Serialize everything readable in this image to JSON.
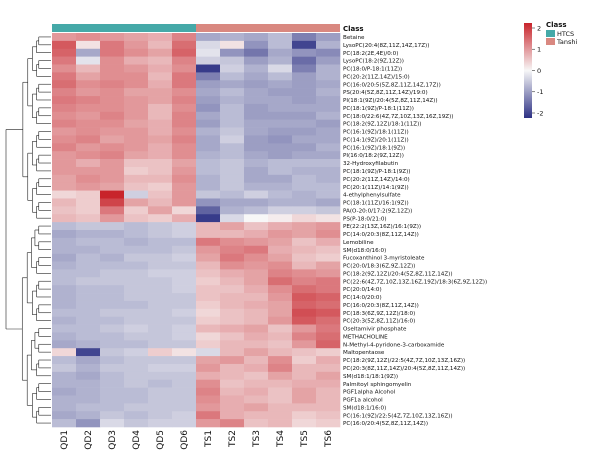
{
  "chart_data": {
    "type": "heatmap",
    "title": "",
    "color_scale": {
      "min": -2,
      "max": 2,
      "ticks": [
        "2",
        "1",
        "0",
        "-1",
        "-2"
      ],
      "low_color": "#2d3184",
      "mid_color": "#f7f7f7",
      "high_color": "#c8242b"
    },
    "class_bar": {
      "label": "Class",
      "groups": [
        {
          "name": "HTCS",
          "color": "#45a9a8",
          "columns": 6
        },
        {
          "name": "Tanshi",
          "color": "#d98880",
          "columns": 6
        }
      ]
    },
    "legend": {
      "title": "Class",
      "entries": [
        "HTCS",
        "Tanshi"
      ]
    },
    "columns": [
      "QD1",
      "QD2",
      "QD3",
      "QD4",
      "QD5",
      "QD6",
      "TS1",
      "TS2",
      "TS3",
      "TS4",
      "TS5",
      "TS6"
    ],
    "rows": [
      "Betaine",
      "LysoPC(20:4(8Z,11Z,14Z,17Z))",
      "PC(18:2(2E,4E)/0:0)",
      "LysoPC(18:2(9Z,12Z))",
      "PC(18:0/P-18:1(11Z))",
      "PC(20:2(11Z,14Z)/15:0)",
      "PC(16:0/20:5(5Z,8Z,11Z,14Z,17Z))",
      "PS(20:4(5Z,8Z,11Z,14Z)/19:0)",
      "PI(18:1(9Z)/20:4(5Z,8Z,11Z,14Z))",
      "PC(18:1(9Z)/P-18:1(11Z))",
      "PC(18:0/22:6(4Z,7Z,10Z,13Z,16Z,19Z))",
      "PC(18:2(9Z,12Z)/18:1(11Z))",
      "PC(16:1(9Z)/18:1(11Z))",
      "PC(14:1(9Z)/20:1(11Z))",
      "PC(16:1(9Z)/18:1(9Z))",
      "PI(16:0/18:2(9Z,12Z))",
      "32-Hydroxyfilabutin",
      "PC(18:1(9Z)/P-18:1(9Z))",
      "PC(20:2(11Z,14Z)/14:0)",
      "PC(20:1(11Z)/14:1(9Z))",
      "4-ethylphenylsulfate",
      "PC(18:1(11Z)/16:1(9Z))",
      "PA(O-20:0/17:2(9Z,12Z))",
      "PS(P-18:0/21:0)",
      "PE(22:2(13Z,16Z)/16:1(9Z))",
      "PC(14:0/20:3(8Z,11Z,14Z))",
      "Lemobiline",
      "SM(d18:0/16:0)",
      "Fucoxanthinol 3-myristoleate",
      "PC(20:0/18:3(6Z,9Z,12Z))",
      "PC(18:2(9Z,12Z)/20:4(5Z,8Z,11Z,14Z))",
      "PC(22:6(4Z,7Z,10Z,13Z,16Z,19Z)/18:3(6Z,9Z,12Z))",
      "PC(20:0/14:0)",
      "PC(14:0/20:0)",
      "PC(16:0/20:3(8Z,11Z,14Z))",
      "PC(18:3(6Z,9Z,12Z)/18:0)",
      "PC(20:3(5Z,8Z,11Z)/16:0)",
      "Oseltamivir phosphate",
      "METHACHOLINE",
      "N-Methyl-4-pyridone-3-carboxamide",
      "Maltopentaose",
      "PC(18:2(9Z,12Z)/22:5(4Z,7Z,10Z,13Z,16Z))",
      "PC(20:3(8Z,11Z,14Z)/20:4(5Z,8Z,11Z,14Z))",
      "SM(d18:1/18:1(9Z))",
      "Palmitoyl sphingomyelin",
      "PGF1alpha Alcohol",
      "PGF1a alcohol",
      "SM(d18:1/16:0)",
      "PC(16:1(9Z)/22:5(4Z,7Z,10Z,13Z,16Z))",
      "PC(16:0/20:4(5Z,8Z,11Z,14Z))"
    ],
    "values": [
      [
        0.9,
        1.0,
        0.9,
        0.8,
        0.7,
        1.1,
        -0.8,
        -0.7,
        -0.8,
        -0.6,
        -1.2,
        -0.9
      ],
      [
        1.5,
        0.2,
        1.2,
        0.9,
        0.6,
        1.3,
        -0.3,
        0.2,
        -1.0,
        -0.6,
        -1.8,
        -0.7
      ],
      [
        1.4,
        -0.8,
        1.2,
        1.0,
        0.8,
        1.4,
        -0.2,
        -1.0,
        -1.3,
        -0.8,
        -1.0,
        -1.1
      ],
      [
        1.2,
        -0.2,
        1.0,
        0.7,
        0.6,
        1.1,
        -0.4,
        -0.5,
        -0.9,
        -0.7,
        -1.4,
        -0.9
      ],
      [
        1.0,
        0.6,
        1.0,
        0.9,
        0.7,
        1.0,
        -1.9,
        -0.4,
        -0.7,
        -0.3,
        -1.2,
        -0.7
      ],
      [
        1.2,
        0.8,
        1.0,
        1.0,
        0.6,
        1.2,
        -1.2,
        -0.6,
        -0.8,
        -0.6,
        -0.9,
        -0.7
      ],
      [
        1.3,
        1.0,
        1.1,
        1.0,
        0.7,
        1.2,
        -0.9,
        -0.8,
        -0.9,
        -0.8,
        -0.9,
        -0.8
      ],
      [
        1.1,
        0.9,
        1.0,
        0.8,
        0.8,
        1.0,
        -0.8,
        -0.6,
        -0.8,
        -0.9,
        -0.9,
        -0.7
      ],
      [
        1.2,
        1.1,
        1.0,
        0.9,
        0.8,
        1.1,
        -0.9,
        -0.7,
        -0.8,
        -0.8,
        -0.9,
        -0.8
      ],
      [
        1.1,
        1.0,
        1.0,
        0.9,
        0.6,
        1.0,
        -1.0,
        -0.6,
        -0.9,
        -0.8,
        -0.8,
        -0.8
      ],
      [
        1.0,
        0.9,
        1.1,
        0.9,
        0.6,
        1.1,
        -0.8,
        -0.6,
        -0.9,
        -0.9,
        -0.9,
        -0.7
      ],
      [
        1.1,
        1.0,
        1.0,
        0.8,
        0.7,
        1.1,
        -0.9,
        -0.6,
        -0.8,
        -0.8,
        -0.8,
        -0.9
      ],
      [
        0.9,
        1.0,
        0.9,
        0.9,
        0.7,
        1.0,
        -0.7,
        -0.5,
        -0.8,
        -0.9,
        -0.9,
        -0.8
      ],
      [
        1.0,
        1.1,
        0.8,
        0.9,
        0.8,
        1.1,
        -0.8,
        -0.4,
        -0.9,
        -1.0,
        -0.8,
        -0.8
      ],
      [
        1.1,
        0.9,
        1.0,
        0.9,
        0.7,
        1.0,
        -0.8,
        -0.6,
        -0.9,
        -0.9,
        -0.9,
        -0.7
      ],
      [
        0.9,
        1.0,
        1.1,
        0.8,
        0.7,
        1.0,
        -0.7,
        -0.6,
        -0.8,
        -0.9,
        -0.8,
        -0.8
      ],
      [
        0.9,
        0.7,
        0.9,
        0.5,
        0.5,
        0.8,
        -0.6,
        -0.5,
        -0.7,
        -0.6,
        -0.6,
        -0.6
      ],
      [
        0.9,
        0.9,
        0.9,
        0.4,
        0.5,
        0.9,
        -0.6,
        -0.5,
        -0.8,
        -0.6,
        -0.7,
        -0.7
      ],
      [
        0.8,
        1.0,
        0.9,
        0.6,
        0.6,
        1.0,
        -0.7,
        -0.5,
        -0.8,
        -0.8,
        -0.6,
        -0.7
      ],
      [
        0.8,
        0.9,
        0.8,
        0.5,
        0.4,
        0.9,
        -0.7,
        -0.5,
        -0.7,
        -0.7,
        -0.6,
        -0.6
      ],
      [
        0.3,
        0.4,
        2.0,
        -0.4,
        0.5,
        0.9,
        -0.5,
        -0.6,
        -0.4,
        -0.6,
        -0.7,
        -0.6
      ],
      [
        0.6,
        0.4,
        1.7,
        0.8,
        0.6,
        0.9,
        -1.0,
        -0.8,
        -0.8,
        -0.7,
        -0.7,
        -0.8
      ],
      [
        0.5,
        0.4,
        1.2,
        0.4,
        0.8,
        0.3,
        -1.5,
        -0.7,
        -0.6,
        -0.4,
        -0.4,
        -0.5
      ],
      [
        0.6,
        0.5,
        0.9,
        0.5,
        0.4,
        0.7,
        -1.9,
        -0.3,
        0.0,
        0.1,
        0.3,
        0.2
      ],
      [
        -0.6,
        -0.5,
        -0.5,
        -0.6,
        -0.5,
        -0.4,
        0.6,
        0.8,
        0.5,
        0.7,
        0.8,
        0.9
      ],
      [
        -0.8,
        -0.7,
        -0.7,
        -0.6,
        -0.5,
        -0.4,
        0.6,
        0.6,
        0.7,
        0.9,
        0.8,
        1.0
      ],
      [
        -0.7,
        -0.6,
        -0.6,
        -0.7,
        -0.6,
        -0.6,
        1.2,
        1.0,
        0.9,
        0.8,
        0.5,
        0.7
      ],
      [
        -0.7,
        -0.7,
        -0.6,
        -0.6,
        -0.6,
        -0.5,
        0.9,
        1.1,
        1.2,
        0.7,
        0.6,
        0.5
      ],
      [
        -0.8,
        -0.6,
        -0.7,
        -0.5,
        -0.5,
        -0.4,
        0.8,
        1.2,
        1.0,
        0.8,
        0.5,
        0.4
      ],
      [
        -0.7,
        -0.6,
        -0.6,
        -0.6,
        -0.5,
        -0.5,
        0.6,
        1.0,
        0.9,
        1.0,
        0.6,
        0.8
      ],
      [
        -0.6,
        -0.6,
        -0.5,
        -0.5,
        -0.4,
        -0.4,
        0.5,
        0.7,
        0.8,
        1.1,
        1.0,
        0.9
      ],
      [
        -0.6,
        -0.5,
        -0.5,
        -0.5,
        -0.5,
        -0.4,
        0.4,
        0.6,
        0.8,
        1.3,
        1.1,
        1.2
      ],
      [
        -0.7,
        -0.6,
        -0.6,
        -0.5,
        -0.5,
        -0.4,
        0.5,
        0.5,
        0.7,
        1.0,
        1.3,
        1.2
      ],
      [
        -0.7,
        -0.6,
        -0.6,
        -0.5,
        -0.5,
        -0.5,
        0.5,
        0.6,
        0.6,
        0.9,
        1.5,
        1.4
      ],
      [
        -0.7,
        -0.6,
        -0.6,
        -0.6,
        -0.5,
        -0.5,
        0.4,
        0.6,
        0.7,
        0.8,
        1.4,
        1.3
      ],
      [
        -0.6,
        -0.6,
        -0.5,
        -0.5,
        -0.5,
        -0.4,
        0.3,
        0.5,
        0.6,
        0.8,
        1.6,
        1.5
      ],
      [
        -0.7,
        -0.6,
        -0.6,
        -0.5,
        -0.5,
        -0.5,
        0.4,
        0.5,
        0.6,
        0.9,
        1.5,
        1.3
      ],
      [
        -0.6,
        -0.6,
        -0.5,
        -0.4,
        -0.5,
        -0.4,
        0.6,
        0.7,
        0.8,
        0.5,
        0.9,
        1.2
      ],
      [
        -0.7,
        -0.6,
        -0.6,
        -0.5,
        -0.5,
        -0.4,
        0.3,
        0.5,
        0.7,
        0.6,
        1.1,
        1.3
      ],
      [
        -0.8,
        -0.7,
        -0.6,
        -0.6,
        -0.5,
        -0.5,
        0.4,
        0.6,
        0.6,
        0.5,
        0.9,
        1.4
      ],
      [
        0.3,
        -1.8,
        -0.5,
        -0.4,
        0.4,
        0.2,
        -0.3,
        0.6,
        0.8,
        0.6,
        0.5,
        0.4
      ],
      [
        -0.6,
        -0.8,
        -0.6,
        -0.5,
        -0.5,
        -0.5,
        0.8,
        0.9,
        0.6,
        1.0,
        0.4,
        0.7
      ],
      [
        -0.5,
        -0.7,
        -0.5,
        -0.5,
        -0.4,
        -0.4,
        0.9,
        0.6,
        0.7,
        1.1,
        0.6,
        0.6
      ],
      [
        -0.7,
        -0.8,
        -0.6,
        -0.5,
        -0.5,
        -0.5,
        0.7,
        0.6,
        0.5,
        0.8,
        0.6,
        0.8
      ],
      [
        -0.7,
        -0.7,
        -0.6,
        -0.5,
        -0.6,
        -0.5,
        1.0,
        0.5,
        0.6,
        0.6,
        0.7,
        0.7
      ],
      [
        -0.8,
        -0.7,
        -0.6,
        -0.6,
        -0.5,
        -0.5,
        1.1,
        0.6,
        0.7,
        0.5,
        0.8,
        0.6
      ],
      [
        -0.7,
        -0.7,
        -0.6,
        -0.6,
        -0.5,
        -0.5,
        1.0,
        0.7,
        0.6,
        0.5,
        0.8,
        0.6
      ],
      [
        -0.7,
        -0.6,
        -0.6,
        -0.5,
        -0.5,
        -0.5,
        0.9,
        0.7,
        0.8,
        0.6,
        0.6,
        0.6
      ],
      [
        -0.8,
        -0.7,
        -0.5,
        -0.6,
        -0.5,
        -0.4,
        1.2,
        0.7,
        0.6,
        0.6,
        0.4,
        0.5
      ],
      [
        -0.6,
        -1.0,
        -0.3,
        -0.5,
        -0.4,
        -0.4,
        0.9,
        1.1,
        0.5,
        0.6,
        0.3,
        0.4
      ]
    ]
  }
}
